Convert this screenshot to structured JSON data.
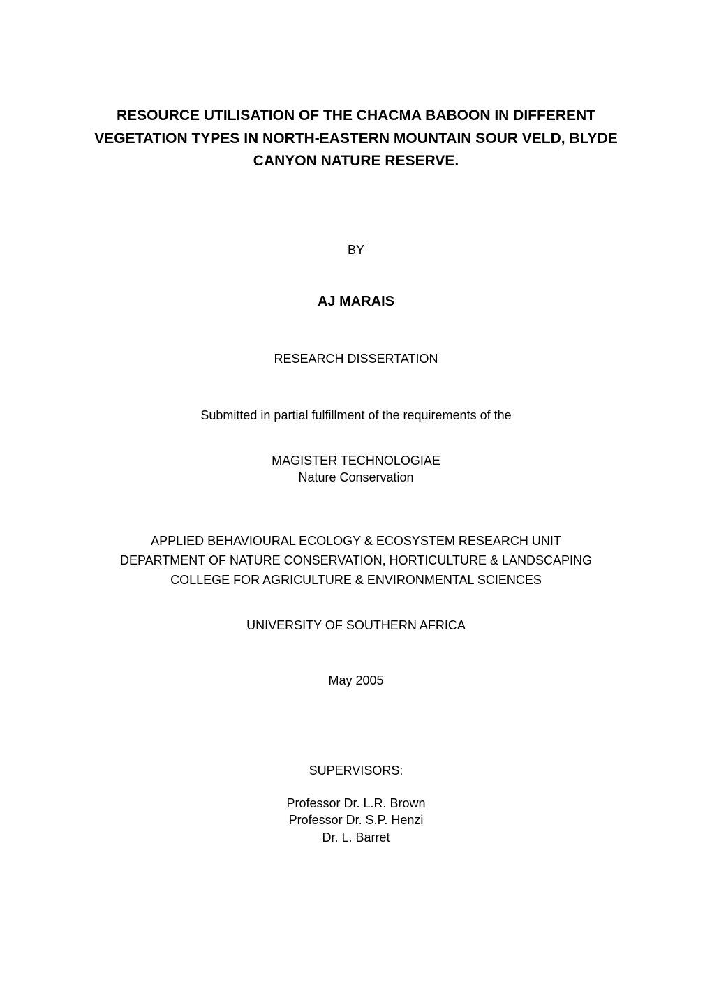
{
  "document": {
    "type": "title-page",
    "background_color": "#ffffff",
    "text_color": "#000000",
    "font_family": "Arial",
    "title": {
      "line1": "RESOURCE UTILISATION OF THE CHACMA BABOON IN DIFFERENT",
      "line2": "VEGETATION TYPES IN NORTH-EASTERN MOUNTAIN SOUR VELD, BLYDE",
      "line3": "CANYON NATURE RESERVE.",
      "fontsize_pt": 16,
      "fontweight": "bold"
    },
    "by_label": "BY",
    "author": {
      "text": "AJ MARAIS",
      "fontsize_pt": 15,
      "fontweight": "bold"
    },
    "subtitle": "RESEARCH DISSERTATION",
    "fulfillment": "Submitted in partial fulfillment of the requirements of the",
    "degree": {
      "line1": "MAGISTER TECHNOLOGIAE",
      "line2": "Nature Conservation"
    },
    "department": {
      "line1": "APPLIED BEHAVIOURAL ECOLOGY & ECOSYSTEM RESEARCH UNIT",
      "line2": "DEPARTMENT OF NATURE CONSERVATION, HORTICULTURE & LANDSCAPING",
      "line3": "COLLEGE FOR AGRICULTURE & ENVIRONMENTAL SCIENCES"
    },
    "university": "UNIVERSITY OF SOUTHERN AFRICA",
    "date": "May 2005",
    "supervisors": {
      "label": "SUPERVISORS:",
      "list": [
        "Professor Dr. L.R. Brown",
        "Professor Dr. S.P. Henzi",
        "Dr. L. Barret"
      ]
    },
    "body_fontsize_pt": 14
  }
}
